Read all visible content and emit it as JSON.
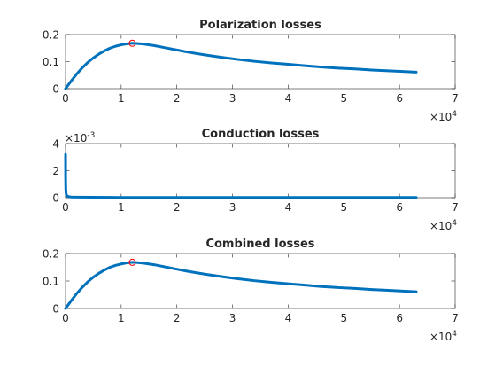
{
  "figure": {
    "background": "#ffffff",
    "axes_color": "#262626",
    "line_color": "#0072bd",
    "marker_color": "#ff0000"
  },
  "chart_data": [
    {
      "type": "line",
      "title": "Polarization losses",
      "xlabel": "",
      "ylabel": "",
      "xlim": [
        0,
        70000
      ],
      "ylim": [
        0,
        0.2
      ],
      "x_ticks": [
        0,
        10000,
        20000,
        30000,
        40000,
        50000,
        60000,
        70000
      ],
      "x_tick_labels": [
        "0",
        "1",
        "2",
        "3",
        "4",
        "5",
        "6",
        "7"
      ],
      "y_ticks": [
        0,
        0.1,
        0.2
      ],
      "y_tick_labels": [
        "0",
        "0.1",
        "0.2"
      ],
      "x_exponent": {
        "base": "×10",
        "power": "4"
      },
      "y_exponent": null,
      "grid": false,
      "series": [
        {
          "style": "line",
          "x": [
            0,
            1000,
            2000,
            3000,
            4000,
            5000,
            6000,
            7000,
            8000,
            9000,
            10000,
            11000,
            12000,
            13000,
            14000,
            16000,
            18000,
            20000,
            22000,
            25000,
            28000,
            31000,
            34000,
            37000,
            40000,
            43000,
            46000,
            49000,
            52000,
            55000,
            58000,
            61000,
            63000
          ],
          "y": [
            0,
            0.028,
            0.054,
            0.077,
            0.097,
            0.114,
            0.128,
            0.14,
            0.15,
            0.157,
            0.162,
            0.166,
            0.168,
            0.167,
            0.165,
            0.159,
            0.151,
            0.143,
            0.135,
            0.125,
            0.116,
            0.108,
            0.101,
            0.095,
            0.09,
            0.085,
            0.08,
            0.076,
            0.073,
            0.069,
            0.066,
            0.063,
            0.061
          ]
        }
      ],
      "marker": {
        "x": 12000,
        "y": 0.168,
        "shape": "circle"
      }
    },
    {
      "type": "line",
      "title": "Conduction losses",
      "xlabel": "",
      "ylabel": "",
      "xlim": [
        0,
        70000
      ],
      "ylim": [
        0,
        0.004
      ],
      "x_ticks": [
        0,
        10000,
        20000,
        30000,
        40000,
        50000,
        60000,
        70000
      ],
      "x_tick_labels": [
        "0",
        "1",
        "2",
        "3",
        "4",
        "5",
        "6",
        "7"
      ],
      "y_ticks": [
        0,
        0.002,
        0.004
      ],
      "y_tick_labels": [
        "0",
        "2",
        "4"
      ],
      "x_exponent": {
        "base": "×10",
        "power": "4"
      },
      "y_exponent": {
        "base": "×10",
        "power": "-3"
      },
      "grid": false,
      "series": [
        {
          "style": "line",
          "x": [
            5,
            20,
            50,
            100,
            200,
            400,
            700,
            1000,
            2000,
            5000,
            10000,
            20000,
            30000,
            40000,
            50000,
            63000
          ],
          "y": [
            0.0032,
            0.0014,
            0.0006,
            0.0003,
            0.00016,
            0.0001,
            7e-05,
            5e-05,
            4e-05,
            3e-05,
            2e-05,
            2e-05,
            2e-05,
            2e-05,
            2e-05,
            2e-05
          ]
        }
      ],
      "marker": null
    },
    {
      "type": "line",
      "title": "Combined losses",
      "xlabel": "",
      "ylabel": "",
      "xlim": [
        0,
        70000
      ],
      "ylim": [
        0,
        0.2
      ],
      "x_ticks": [
        0,
        10000,
        20000,
        30000,
        40000,
        50000,
        60000,
        70000
      ],
      "x_tick_labels": [
        "0",
        "1",
        "2",
        "3",
        "4",
        "5",
        "6",
        "7"
      ],
      "y_ticks": [
        0,
        0.1,
        0.2
      ],
      "y_tick_labels": [
        "0",
        "0.1",
        "0.2"
      ],
      "x_exponent": {
        "base": "×10",
        "power": "4"
      },
      "y_exponent": null,
      "grid": false,
      "series": [
        {
          "style": "line",
          "x": [
            0,
            1000,
            2000,
            3000,
            4000,
            5000,
            6000,
            7000,
            8000,
            9000,
            10000,
            11000,
            12000,
            13000,
            14000,
            16000,
            18000,
            20000,
            22000,
            25000,
            28000,
            31000,
            34000,
            37000,
            40000,
            43000,
            46000,
            49000,
            52000,
            55000,
            58000,
            61000,
            63000
          ],
          "y": [
            0,
            0.028,
            0.054,
            0.077,
            0.097,
            0.114,
            0.128,
            0.14,
            0.15,
            0.157,
            0.162,
            0.166,
            0.168,
            0.167,
            0.165,
            0.159,
            0.151,
            0.143,
            0.135,
            0.125,
            0.116,
            0.108,
            0.101,
            0.095,
            0.09,
            0.085,
            0.08,
            0.076,
            0.073,
            0.069,
            0.066,
            0.063,
            0.061
          ]
        }
      ],
      "marker": {
        "x": 12000,
        "y": 0.168,
        "shape": "circle"
      }
    }
  ]
}
